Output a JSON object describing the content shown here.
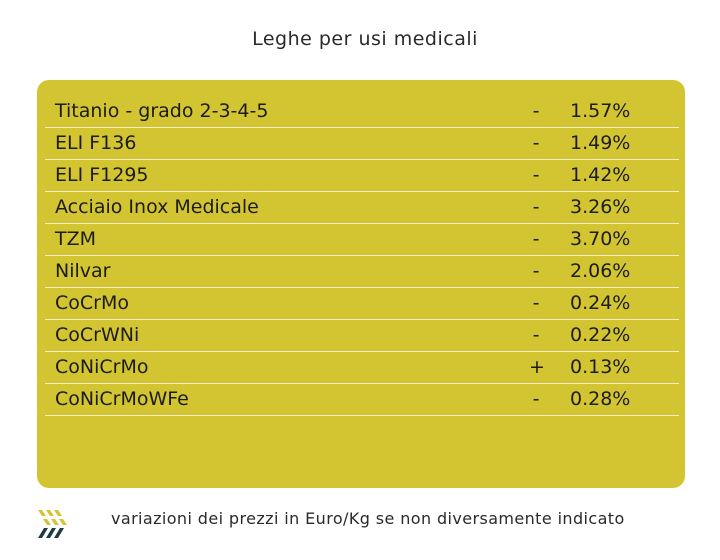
{
  "title": "Leghe per usi medicali",
  "colors": {
    "panel": "#d3c432",
    "divider": "#f5eecb",
    "logo_dark": "#1f3a40",
    "logo_accent": "#d3c432"
  },
  "rows": [
    {
      "name": "Titanio - grado 2-3-4-5",
      "sign": "-",
      "change": "1.57%"
    },
    {
      "name": "ELI F136",
      "sign": "-",
      "change": "1.49%"
    },
    {
      "name": "ELI F1295",
      "sign": "-",
      "change": "1.42%"
    },
    {
      "name": "Acciaio Inox Medicale",
      "sign": "-",
      "change": "3.26%"
    },
    {
      "name": "TZM",
      "sign": "-",
      "change": "3.70%"
    },
    {
      "name": "Nilvar",
      "sign": "-",
      "change": "2.06%"
    },
    {
      "name": "CoCrMo",
      "sign": "-",
      "change": "0.24%"
    },
    {
      "name": "CoCrWNi",
      "sign": "-",
      "change": "0.22%"
    },
    {
      "name": "CoNiCrMo",
      "sign": "+",
      "change": "0.13%"
    },
    {
      "name": "CoNiCrMoWFe",
      "sign": "-",
      "change": "0.28%"
    }
  ],
  "footer": {
    "logo_icon": "stripes-logo-icon",
    "note": "variazioni dei prezzi in Euro/Kg se non diversamente indicato"
  }
}
